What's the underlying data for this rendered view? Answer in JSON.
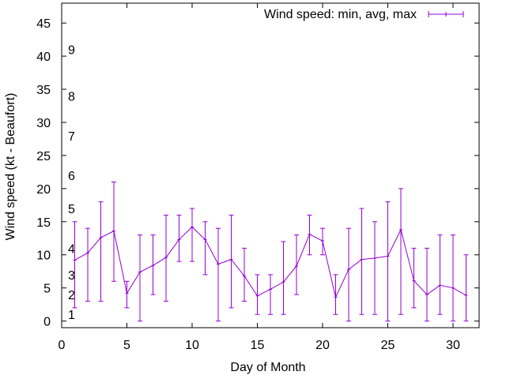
{
  "chart_data": {
    "type": "line",
    "title": "",
    "xlabel": "Day of Month",
    "ylabel": "Wind speed (kt - Beaufort)",
    "xlim": [
      0,
      32
    ],
    "ylim": [
      -1,
      48
    ],
    "xticks": [
      0,
      5,
      10,
      15,
      20,
      25,
      30
    ],
    "yticks": [
      0,
      5,
      10,
      15,
      20,
      25,
      30,
      35,
      40,
      45
    ],
    "grid": false,
    "legend_position": "top-right",
    "series": [
      {
        "name": "Wind speed: min, avg, max",
        "color": "#9400d3",
        "x": [
          1,
          2,
          3,
          4,
          5,
          6,
          7,
          8,
          9,
          10,
          11,
          12,
          13,
          14,
          15,
          16,
          17,
          18,
          19,
          20,
          21,
          22,
          23,
          24,
          25,
          26,
          27,
          28,
          29,
          30,
          31
        ],
        "avg": [
          9.2,
          10.3,
          12.6,
          13.6,
          4.2,
          7.4,
          8.4,
          9.6,
          12.3,
          14.2,
          12.3,
          8.6,
          9.3,
          6.8,
          3.8,
          4.8,
          5.9,
          8.3,
          13.1,
          12.1,
          3.6,
          7.8,
          9.3,
          9.5,
          9.8,
          13.8,
          6.1,
          4.0,
          5.4,
          5.0,
          3.9
        ],
        "min": [
          2,
          3,
          3,
          6,
          2,
          0,
          4,
          3,
          9,
          9,
          7,
          0,
          2,
          3,
          1,
          1,
          1,
          4,
          10,
          10,
          1,
          0,
          1,
          1,
          0,
          1,
          2,
          0,
          1,
          0,
          0
        ],
        "max": [
          15,
          14,
          18,
          21,
          6,
          13,
          13,
          16,
          16,
          17,
          15,
          14,
          16,
          11,
          7,
          7,
          12,
          13,
          16,
          14,
          7,
          14,
          17,
          15,
          18,
          20,
          11,
          11,
          13,
          13,
          10
        ]
      }
    ],
    "beaufort_labels": [
      {
        "text": "1",
        "kt": 1
      },
      {
        "text": "2",
        "kt": 4
      },
      {
        "text": "3",
        "kt": 7
      },
      {
        "text": "4",
        "kt": 11
      },
      {
        "text": "5",
        "kt": 17
      },
      {
        "text": "6",
        "kt": 22
      },
      {
        "text": "7",
        "kt": 28
      },
      {
        "text": "8",
        "kt": 34
      },
      {
        "text": "9",
        "kt": 41
      }
    ]
  }
}
